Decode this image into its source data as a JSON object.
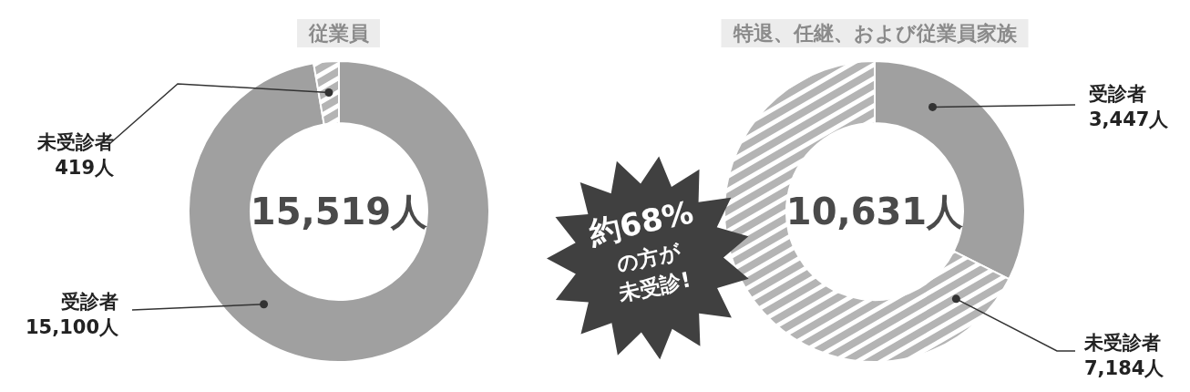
{
  "chart_data": [
    {
      "type": "donut",
      "title": "従業員",
      "categories": [
        "受診者",
        "未受診者"
      ],
      "values": [
        15100,
        419
      ],
      "value_labels": [
        "15,100人",
        "419人"
      ],
      "colors": [
        "#a0a0a0",
        "#b4b4b4"
      ],
      "annotations": [
        "15,519人"
      ]
    },
    {
      "type": "donut",
      "title": "特退、任継、および従業員家族",
      "categories": [
        "受診者",
        "未受診者"
      ],
      "values": [
        3447,
        7184
      ],
      "value_labels": [
        "3,447人",
        "7,184人"
      ],
      "colors": [
        "#a0a0a0",
        "#b4b4b4"
      ],
      "annotations": [
        "10,631人",
        "約68%",
        "の方が",
        "未受診!"
      ]
    }
  ]
}
